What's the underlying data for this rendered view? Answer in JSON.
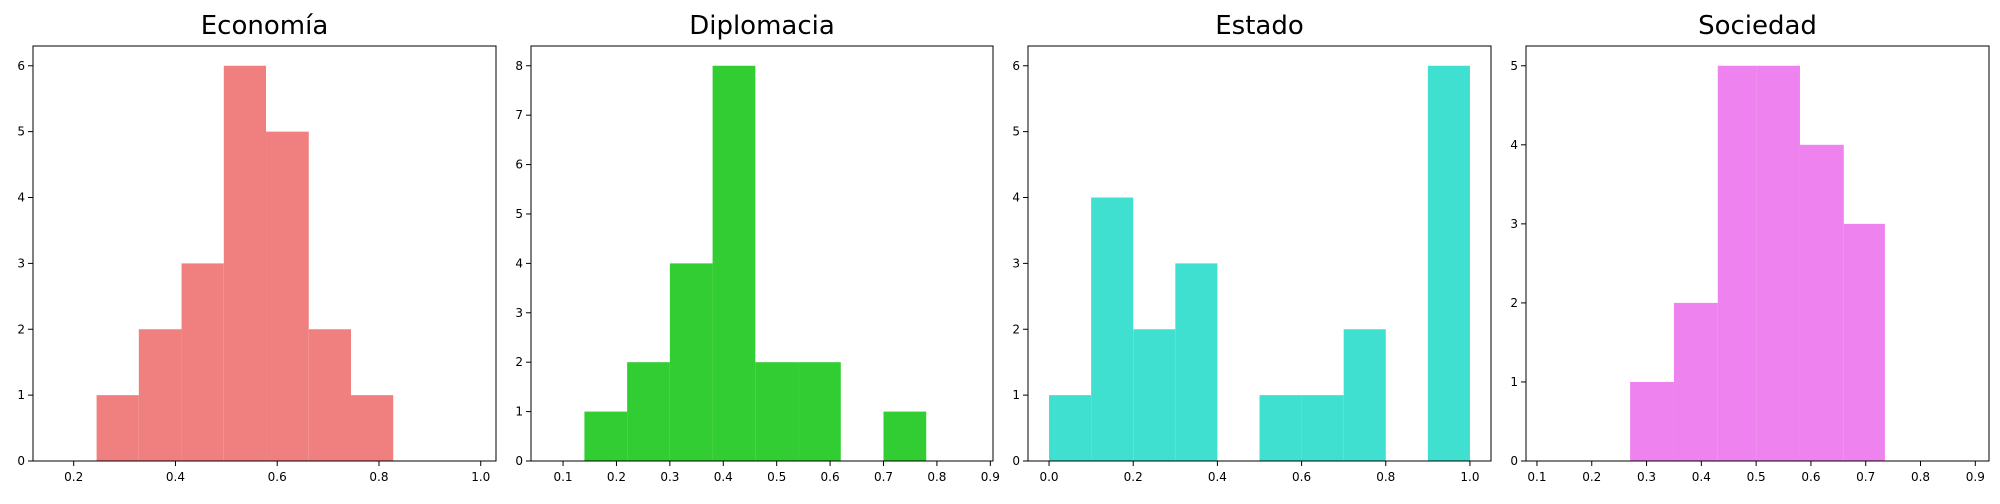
{
  "chart_data": [
    {
      "type": "bar",
      "title": "Economía",
      "color": "#F08080",
      "bins": [
        [
          0.245,
          0.328
        ],
        [
          0.328,
          0.412
        ],
        [
          0.412,
          0.495
        ],
        [
          0.495,
          0.578
        ],
        [
          0.578,
          0.662
        ],
        [
          0.662,
          0.745
        ],
        [
          0.745,
          0.828
        ]
      ],
      "values": [
        1,
        2,
        3,
        6,
        5,
        2,
        1
      ],
      "xlim": [
        0.12,
        1.03
      ],
      "ylim": [
        0,
        6.3
      ],
      "xticks": [
        0.2,
        0.4,
        0.6,
        0.8,
        1.0
      ],
      "xtick_labels": [
        "0.2",
        "0.4",
        "0.6",
        "0.8",
        "1.0"
      ],
      "yticks": [
        0,
        1,
        2,
        3,
        4,
        5,
        6
      ],
      "ytick_labels": [
        "0",
        "1",
        "2",
        "3",
        "4",
        "5",
        "6"
      ]
    },
    {
      "type": "bar",
      "title": "Diplomacia",
      "color": "#32CD32",
      "bins": [
        [
          0.14,
          0.22
        ],
        [
          0.22,
          0.3
        ],
        [
          0.3,
          0.38
        ],
        [
          0.38,
          0.46
        ],
        [
          0.46,
          0.54
        ],
        [
          0.54,
          0.62
        ],
        [
          0.62,
          0.7
        ],
        [
          0.7,
          0.78
        ]
      ],
      "values": [
        1,
        2,
        4,
        8,
        2,
        2,
        0,
        1
      ],
      "xlim": [
        0.04,
        0.905
      ],
      "ylim": [
        0,
        8.4
      ],
      "xticks": [
        0.1,
        0.2,
        0.3,
        0.4,
        0.5,
        0.6,
        0.7,
        0.8,
        0.9
      ],
      "xtick_labels": [
        "0.1",
        "0.2",
        "0.3",
        "0.4",
        "0.5",
        "0.6",
        "0.7",
        "0.8",
        "0.9"
      ],
      "yticks": [
        0,
        1,
        2,
        3,
        4,
        5,
        6,
        7,
        8
      ],
      "ytick_labels": [
        "0",
        "1",
        "2",
        "3",
        "4",
        "5",
        "6",
        "7",
        "8"
      ]
    },
    {
      "type": "bar",
      "title": "Estado",
      "color": "#40E0D0",
      "bins": [
        [
          0.0,
          0.1
        ],
        [
          0.1,
          0.2
        ],
        [
          0.2,
          0.3
        ],
        [
          0.3,
          0.4
        ],
        [
          0.4,
          0.5
        ],
        [
          0.5,
          0.6
        ],
        [
          0.6,
          0.7
        ],
        [
          0.7,
          0.8
        ],
        [
          0.8,
          0.9
        ],
        [
          0.9,
          1.0
        ]
      ],
      "values": [
        1,
        4,
        2,
        3,
        0,
        1,
        1,
        2,
        0,
        6
      ],
      "xlim": [
        -0.05,
        1.05
      ],
      "ylim": [
        0,
        6.3
      ],
      "xticks": [
        0.0,
        0.2,
        0.4,
        0.6,
        0.8,
        1.0
      ],
      "xtick_labels": [
        "0.0",
        "0.2",
        "0.4",
        "0.6",
        "0.8",
        "1.0"
      ],
      "yticks": [
        0,
        1,
        2,
        3,
        4,
        5,
        6
      ],
      "ytick_labels": [
        "0",
        "1",
        "2",
        "3",
        "4",
        "5",
        "6"
      ]
    },
    {
      "type": "bar",
      "title": "Sociedad",
      "color": "#EE82EE",
      "bins": [
        [
          0.27,
          0.35
        ],
        [
          0.35,
          0.43
        ],
        [
          0.43,
          0.5
        ],
        [
          0.5,
          0.58
        ],
        [
          0.58,
          0.66
        ],
        [
          0.66,
          0.735
        ]
      ],
      "values": [
        1,
        2,
        5,
        5,
        4,
        3
      ],
      "xlim": [
        0.08,
        0.925
      ],
      "ylim": [
        0,
        5.25
      ],
      "xticks": [
        0.1,
        0.2,
        0.3,
        0.4,
        0.5,
        0.6,
        0.7,
        0.8,
        0.9
      ],
      "xtick_labels": [
        "0.1",
        "0.2",
        "0.3",
        "0.4",
        "0.5",
        "0.6",
        "0.7",
        "0.8",
        "0.9"
      ],
      "yticks": [
        0,
        1,
        2,
        3,
        4,
        5
      ],
      "ytick_labels": [
        "0",
        "1",
        "2",
        "3",
        "4",
        "5"
      ]
    }
  ]
}
